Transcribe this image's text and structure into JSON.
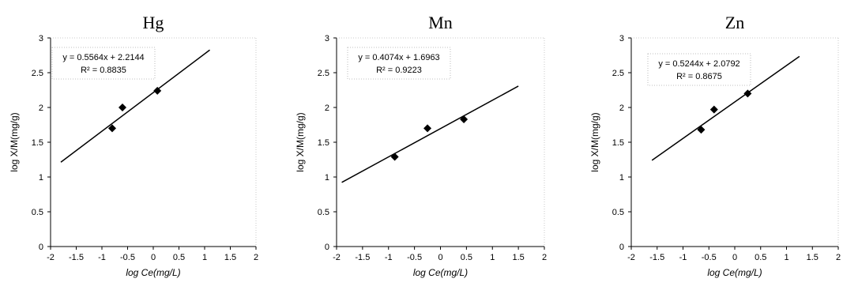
{
  "chart_data": [
    {
      "type": "scatter",
      "title": "Hg",
      "xlabel": "log Ce(mg/L)",
      "ylabel": "log X/M(mg/g)",
      "xlim": [
        -2,
        2
      ],
      "ylim": [
        0,
        3
      ],
      "xticks": [
        "-2",
        "-1.5",
        "-1",
        "-0.5",
        "0",
        "0.5",
        "1",
        "1.5",
        "2"
      ],
      "yticks": [
        "0",
        "0.5",
        "1",
        "1.5",
        "2",
        "2.5",
        "3"
      ],
      "grid": false,
      "points": [
        {
          "x": -0.8,
          "y": 1.7
        },
        {
          "x": -0.6,
          "y": 2.0
        },
        {
          "x": 0.08,
          "y": 2.24
        }
      ],
      "trendline": {
        "slope": 0.5564,
        "intercept": 2.2144,
        "x_range": [
          -1.8,
          1.1
        ]
      },
      "equation": "y = 0.5564x + 2.2144",
      "r_squared": "R² = 0.8835"
    },
    {
      "type": "scatter",
      "title": "Mn",
      "xlabel": "log Ce(mg/L)",
      "ylabel": "log X/M(mg/g)",
      "xlim": [
        -2,
        2
      ],
      "ylim": [
        0,
        3
      ],
      "xticks": [
        "-2",
        "-1.5",
        "-1",
        "-0.5",
        "0",
        "0.5",
        "1",
        "1.5",
        "2"
      ],
      "yticks": [
        "0",
        "0.5",
        "1",
        "1.5",
        "2",
        "2.5",
        "3"
      ],
      "grid": false,
      "points": [
        {
          "x": -0.88,
          "y": 1.29
        },
        {
          "x": -0.25,
          "y": 1.7
        },
        {
          "x": 0.45,
          "y": 1.83
        }
      ],
      "trendline": {
        "slope": 0.4074,
        "intercept": 1.6963,
        "x_range": [
          -1.9,
          1.5
        ]
      },
      "equation": "y = 0.4074x + 1.6963",
      "r_squared": "R² = 0.9223"
    },
    {
      "type": "scatter",
      "title": "Zn",
      "xlabel": "log Ce(mg/L)",
      "ylabel": "log X/M(mg/g)",
      "xlim": [
        -2,
        2
      ],
      "ylim": [
        0,
        3
      ],
      "xticks": [
        "-2",
        "-1.5",
        "-1",
        "-0.5",
        "0",
        "0.5",
        "1",
        "1.5",
        "2"
      ],
      "yticks": [
        "0",
        "0.5",
        "1",
        "1.5",
        "2",
        "2.5",
        "3"
      ],
      "grid": false,
      "points": [
        {
          "x": -0.65,
          "y": 1.68
        },
        {
          "x": -0.4,
          "y": 1.97
        },
        {
          "x": 0.25,
          "y": 2.2
        }
      ],
      "trendline": {
        "slope": 0.5244,
        "intercept": 2.0792,
        "x_range": [
          -1.6,
          1.25
        ]
      },
      "equation": "y = 0.5244x + 2.0792",
      "r_squared": "R² = 0.8675"
    }
  ],
  "colors": {
    "marker": "#000000",
    "line": "#000000",
    "axis": "#000000"
  }
}
